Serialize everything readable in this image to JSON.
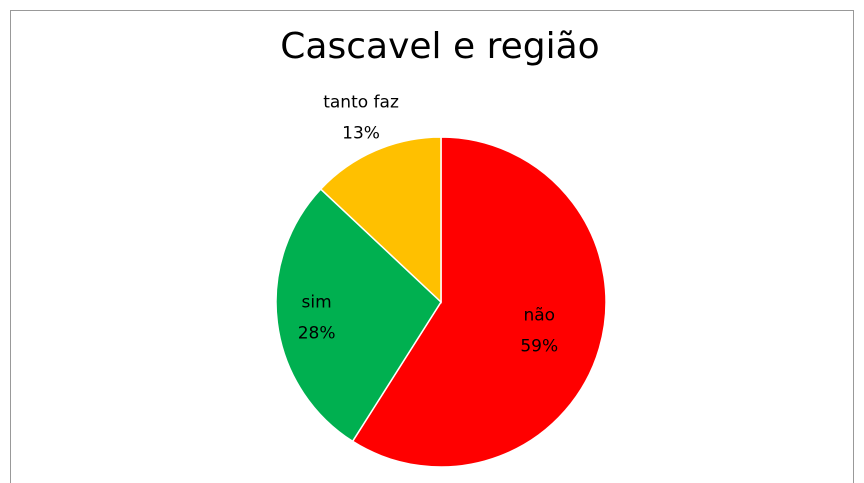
{
  "chart_data": {
    "type": "pie",
    "title": "Cascavel e região",
    "categories": [
      "não",
      "sim",
      "tanto faz"
    ],
    "values": [
      59,
      28,
      13
    ],
    "value_labels": [
      "59%",
      "28%",
      "13%"
    ],
    "colors": [
      "#ff0000",
      "#00b050",
      "#ffc000"
    ]
  }
}
